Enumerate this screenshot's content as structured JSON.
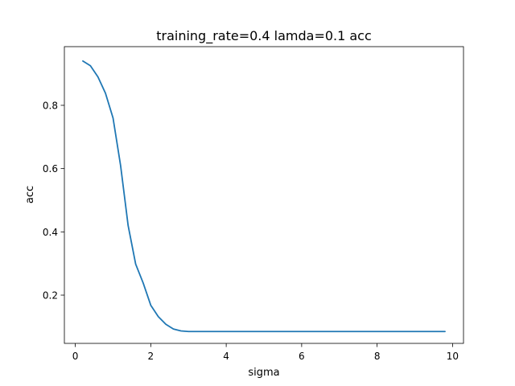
{
  "chart_data": {
    "type": "line",
    "title": "training_rate=0.4 lamda=0.1 acc",
    "xlabel": "sigma",
    "ylabel": "acc",
    "xlim": [
      -0.29,
      10.29
    ],
    "ylim": [
      0.0475,
      0.9855
    ],
    "grid": false,
    "x_ticks": [
      0,
      2,
      4,
      6,
      8,
      10
    ],
    "x_tick_labels": [
      "0",
      "2",
      "4",
      "6",
      "8",
      "10"
    ],
    "y_ticks": [
      0.2,
      0.4,
      0.6,
      0.8
    ],
    "y_tick_labels": [
      "0.2",
      "0.4",
      "0.6",
      "0.8"
    ],
    "series": [
      {
        "color": "#1f77b4",
        "x": [
          0.2,
          0.4,
          0.6,
          0.8,
          1.0,
          1.2,
          1.4,
          1.6,
          1.8,
          2.0,
          2.2,
          2.4,
          2.6,
          2.8,
          3.0,
          3.2,
          3.4,
          3.6,
          3.8,
          4.0,
          4.2,
          4.4,
          4.6,
          4.8,
          5.0,
          5.2,
          5.4,
          5.6,
          5.8,
          6.0,
          6.2,
          6.4,
          6.6,
          6.8,
          7.0,
          7.2,
          7.4,
          7.6,
          7.8,
          8.0,
          8.2,
          8.4,
          8.6,
          8.8,
          9.0,
          9.2,
          9.4,
          9.6,
          9.8
        ],
        "y": [
          0.94,
          0.925,
          0.89,
          0.838,
          0.76,
          0.61,
          0.42,
          0.298,
          0.238,
          0.168,
          0.132,
          0.108,
          0.093,
          0.087,
          0.085,
          0.085,
          0.085,
          0.085,
          0.085,
          0.085,
          0.085,
          0.085,
          0.085,
          0.085,
          0.085,
          0.085,
          0.085,
          0.085,
          0.085,
          0.085,
          0.085,
          0.085,
          0.085,
          0.085,
          0.085,
          0.085,
          0.085,
          0.085,
          0.085,
          0.085,
          0.085,
          0.085,
          0.085,
          0.085,
          0.085,
          0.085,
          0.085,
          0.085,
          0.085
        ]
      }
    ]
  }
}
